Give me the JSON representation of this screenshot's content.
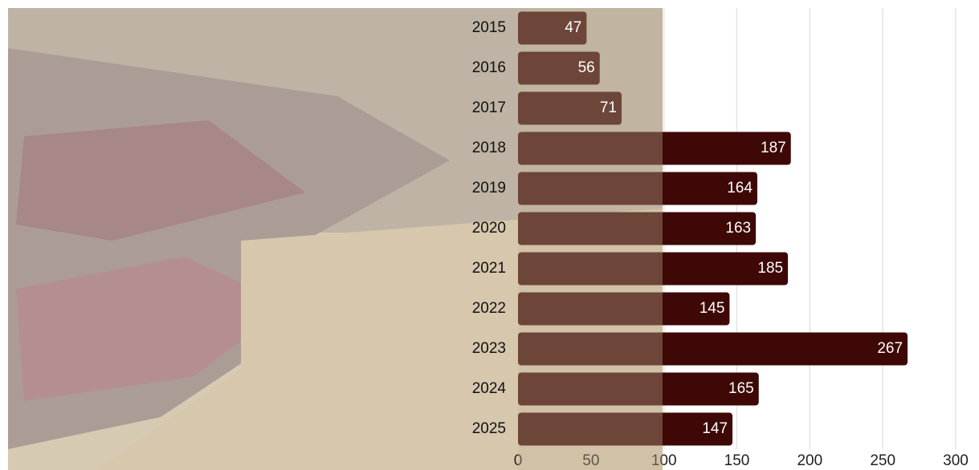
{
  "chart_data": {
    "type": "bar",
    "orientation": "horizontal",
    "categories": [
      "2015",
      "2016",
      "2017",
      "2018",
      "2019",
      "2020",
      "2021",
      "2022",
      "2023",
      "2024",
      "2025"
    ],
    "values": [
      47,
      56,
      71,
      187,
      164,
      163,
      185,
      145,
      267,
      165,
      147
    ],
    "color": "#3d0806",
    "xlim": [
      0,
      300
    ],
    "xticks": [
      0,
      50,
      100,
      150,
      200,
      250,
      300
    ],
    "grid": true
  }
}
